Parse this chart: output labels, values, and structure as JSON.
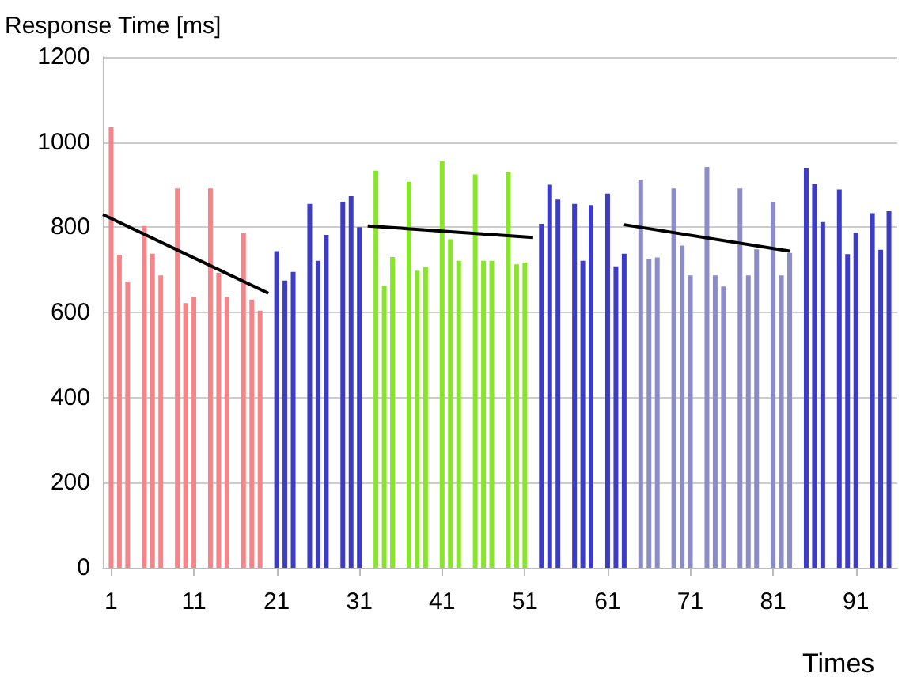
{
  "chart_data": {
    "type": "bar",
    "ylabel": "Response Time [ms]",
    "xlabel": "Times",
    "xlim": [
      0,
      96
    ],
    "xticks": [
      1,
      11,
      21,
      31,
      41,
      51,
      61,
      71,
      81,
      91
    ],
    "ylim": [
      0,
      1200
    ],
    "yticks": [
      0,
      200,
      400,
      600,
      800,
      1000,
      1200
    ],
    "grid": "y",
    "series": [
      {
        "color": "#f4868a",
        "x": [
          1,
          2,
          3,
          5,
          6,
          7,
          9,
          10,
          11,
          13,
          14,
          15,
          17,
          18,
          19
        ],
        "values": [
          1035,
          735,
          672,
          803,
          738,
          687,
          891,
          622,
          637,
          891,
          693,
          637,
          786,
          630,
          604
        ]
      },
      {
        "color": "#3c3cc4",
        "x": [
          21,
          22,
          23,
          25,
          26,
          27,
          29,
          30,
          31
        ],
        "values": [
          744,
          675,
          695,
          855,
          721,
          782,
          860,
          873,
          800
        ]
      },
      {
        "color": "#88e62a",
        "x": [
          33,
          34,
          35,
          37,
          38,
          39,
          41,
          42,
          43,
          45,
          46,
          47,
          49,
          50,
          51
        ],
        "values": [
          933,
          663,
          730,
          907,
          698,
          707,
          955,
          772,
          721,
          924,
          721,
          721,
          929,
          713,
          717
        ]
      },
      {
        "color": "#3c3cc4",
        "x": [
          53,
          54,
          55,
          57,
          58,
          59,
          61,
          62,
          63
        ],
        "values": [
          808,
          900,
          865,
          855,
          721,
          852,
          879,
          708,
          738
        ]
      },
      {
        "color": "#8c8cc8",
        "x": [
          65,
          66,
          67,
          69,
          70,
          71,
          73,
          74,
          75,
          77,
          78,
          79,
          81,
          82,
          83
        ],
        "values": [
          912,
          726,
          729,
          891,
          757,
          687,
          942,
          687,
          661,
          891,
          687,
          748,
          859,
          687,
          740
        ]
      },
      {
        "color": "#3c3cc4",
        "x": [
          85,
          86,
          87,
          89,
          90,
          91,
          93,
          94,
          95
        ],
        "values": [
          939,
          901,
          812,
          889,
          737,
          787,
          833,
          747,
          838
        ]
      },
      {
        "type": "line",
        "color": "#000000",
        "x": [
          0,
          20
        ],
        "values": [
          830,
          645
        ]
      },
      {
        "type": "line",
        "color": "#000000",
        "x": [
          32,
          52
        ],
        "values": [
          803,
          776
        ]
      },
      {
        "type": "line",
        "color": "#000000",
        "x": [
          63,
          83
        ],
        "values": [
          806,
          744
        ]
      }
    ]
  }
}
